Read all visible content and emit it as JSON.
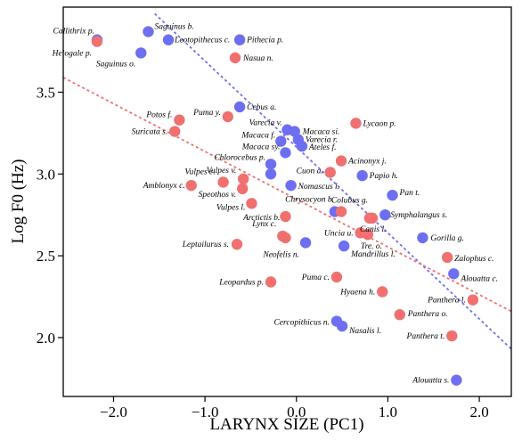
{
  "chart_data": {
    "type": "scatter",
    "title": "",
    "xlabel": "LARYNX SIZE (PC1)",
    "ylabel": "Log F0 (Hz)",
    "xlim": [
      -2.55,
      2.35
    ],
    "ylim": [
      1.64,
      4.02
    ],
    "xticks": [
      -2.0,
      -1.0,
      0.0,
      1.0,
      2.0
    ],
    "xtick_labels": [
      "−2.0",
      "−1.0",
      "0.0",
      "1.0",
      "2.0"
    ],
    "yticks": [
      2.0,
      2.5,
      3.0,
      3.5
    ],
    "ytick_labels": [
      "2.0",
      "2.5",
      "3.0",
      "3.5"
    ],
    "grid": false,
    "legend": "none",
    "colors": {
      "blue": "#6e6ef0",
      "red": "#f07070"
    },
    "series": [
      {
        "color": "blue",
        "trendline": {
          "x": [
            -1.55,
            2.35
          ],
          "y": [
            3.98,
            1.93
          ]
        },
        "points": [
          {
            "x": -2.18,
            "y": 3.82,
            "label": "Callithrix p."
          },
          {
            "x": -1.62,
            "y": 3.87,
            "label": "Saguinus b."
          },
          {
            "x": -1.4,
            "y": 3.82,
            "label": "Leotopithecus c."
          },
          {
            "x": -1.7,
            "y": 3.74,
            "label": "Saguinus o."
          },
          {
            "x": -0.62,
            "y": 3.82,
            "label": "Pithecia p."
          },
          {
            "x": -0.62,
            "y": 3.41,
            "label": "Cebus a."
          },
          {
            "x": -0.1,
            "y": 3.27,
            "label": "Varecia v."
          },
          {
            "x": -0.02,
            "y": 3.26,
            "label": "Macaca si."
          },
          {
            "x": 0.02,
            "y": 3.21,
            "label": "Varecia r."
          },
          {
            "x": -0.17,
            "y": 3.2,
            "label": "Macaca f."
          },
          {
            "x": 0.06,
            "y": 3.17,
            "label": "Ateles f."
          },
          {
            "x": -0.12,
            "y": 3.13,
            "label": "Macaca sy."
          },
          {
            "x": -0.28,
            "y": 3.06,
            "label": "Chlorocebus p."
          },
          {
            "x": -0.28,
            "y": 3.0,
            "label": ""
          },
          {
            "x": 0.72,
            "y": 2.99,
            "label": "Papio h."
          },
          {
            "x": -0.06,
            "y": 2.93,
            "label": "Nomascus l."
          },
          {
            "x": 1.05,
            "y": 2.87,
            "label": "Pan t."
          },
          {
            "x": 0.42,
            "y": 2.77,
            "label": "Colubus g."
          },
          {
            "x": 0.97,
            "y": 2.75,
            "label": "Symphalangus s."
          },
          {
            "x": 1.38,
            "y": 2.61,
            "label": "Gorilla g."
          },
          {
            "x": 0.1,
            "y": 2.58,
            "label": "Neofelis n."
          },
          {
            "x": 0.52,
            "y": 2.56,
            "label": "Mandrillus l."
          },
          {
            "x": 1.72,
            "y": 2.39,
            "label": "Alouatta c."
          },
          {
            "x": 0.44,
            "y": 2.1,
            "label": "Cercopithicus n."
          },
          {
            "x": 0.5,
            "y": 2.07,
            "label": "Nasalis l."
          },
          {
            "x": 1.75,
            "y": 1.74,
            "label": "Alouatta s."
          }
        ]
      },
      {
        "color": "red",
        "trendline": {
          "x": [
            -2.55,
            2.35
          ],
          "y": [
            3.59,
            2.16
          ]
        },
        "points": [
          {
            "x": -2.18,
            "y": 3.81,
            "label": "Helogale p."
          },
          {
            "x": -0.67,
            "y": 3.71,
            "label": "Nasua n."
          },
          {
            "x": -1.28,
            "y": 3.33,
            "label": "Potos f."
          },
          {
            "x": -0.75,
            "y": 3.35,
            "label": "Puma y."
          },
          {
            "x": -1.33,
            "y": 3.26,
            "label": "Suricata s."
          },
          {
            "x": 0.65,
            "y": 3.31,
            "label": "Lycaon p."
          },
          {
            "x": 0.49,
            "y": 3.08,
            "label": "Acinonyx j."
          },
          {
            "x": 0.37,
            "y": 3.01,
            "label": "Cuon a."
          },
          {
            "x": -0.58,
            "y": 2.97,
            "label": "Vulpes v."
          },
          {
            "x": -0.8,
            "y": 2.95,
            "label": "Vulpes c."
          },
          {
            "x": -1.15,
            "y": 2.93,
            "label": "Amblonyx c."
          },
          {
            "x": -0.59,
            "y": 2.91,
            "label": "Speothos v."
          },
          {
            "x": -0.49,
            "y": 2.82,
            "label": "Vulpes l."
          },
          {
            "x": -0.12,
            "y": 2.74,
            "label": "Arctictis b."
          },
          {
            "x": 0.49,
            "y": 2.77,
            "label": "Chrysocyon b."
          },
          {
            "x": 0.8,
            "y": 2.73,
            "label": ""
          },
          {
            "x": 0.83,
            "y": 2.73,
            "label": "Canis l."
          },
          {
            "x": 0.7,
            "y": 2.64,
            "label": "Uncia u."
          },
          {
            "x": 0.78,
            "y": 2.63,
            "label": "Tre. o."
          },
          {
            "x": -0.15,
            "y": 2.62,
            "label": "Lynx c."
          },
          {
            "x": -0.12,
            "y": 2.61,
            "label": ""
          },
          {
            "x": -0.65,
            "y": 2.57,
            "label": "Leptailurus s."
          },
          {
            "x": 1.65,
            "y": 2.49,
            "label": "Zalophus c."
          },
          {
            "x": 0.44,
            "y": 2.37,
            "label": "Puma c."
          },
          {
            "x": -0.28,
            "y": 2.34,
            "label": "Leopardus p."
          },
          {
            "x": 0.94,
            "y": 2.28,
            "label": "Hyaena h."
          },
          {
            "x": 1.93,
            "y": 2.23,
            "label": "Panthera l."
          },
          {
            "x": 1.13,
            "y": 2.14,
            "label": "Panthera o."
          },
          {
            "x": 1.7,
            "y": 2.01,
            "label": "Panthera t."
          }
        ]
      }
    ]
  }
}
